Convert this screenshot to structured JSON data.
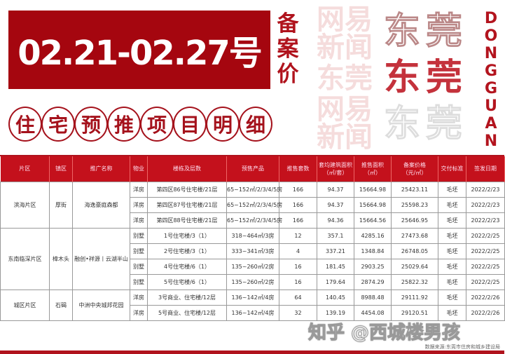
{
  "header": {
    "date_range": "02.21-02.27号",
    "side_label": [
      "备",
      "案",
      "价"
    ],
    "subtitle_chars": [
      "住",
      "宅",
      "预",
      "推",
      "项",
      "目",
      "明",
      "细"
    ],
    "deco_chars": [
      "东莞",
      "东莞",
      "东莞"
    ],
    "deco_en": [
      "D",
      "O",
      "N",
      "G",
      "G",
      "U",
      "A",
      "N"
    ]
  },
  "table": {
    "columns": [
      "片区",
      "镇区",
      "推广名称",
      "物业",
      "楼栋及层数",
      "预售产品",
      "推售套数",
      "套均建筑面积\n（㎡/套）",
      "推售面积\n（㎡）",
      "备案价格\n（元/㎡）",
      "交付标准",
      "签发日期"
    ],
    "groups": [
      {
        "area": "滨海片区",
        "town": "厚街",
        "project": "海逸豪庭森都",
        "rows": [
          [
            "洋房",
            "第四区86号住宅楼/21层",
            "65~152㎡/2/3/4/5房",
            "166",
            "94.37",
            "15664.98",
            "25423.11",
            "毛坯",
            "2022/2/23"
          ],
          [
            "洋房",
            "第四区87号住宅楼/21层",
            "65~152㎡/2/3/4/5房",
            "166",
            "94.37",
            "15664.98",
            "25598.23",
            "毛坯",
            "2022/2/23"
          ],
          [
            "洋房",
            "第四区88号住宅楼/21层",
            "65~152㎡/2/3/4/5房",
            "166",
            "94.36",
            "15664.56",
            "25646.95",
            "毛坯",
            "2022/2/23"
          ]
        ]
      },
      {
        "area": "东南临深片区",
        "town": "樟木头",
        "project": "融创•祥源丨云湖半山",
        "rows": [
          [
            "别墅",
            "1号住宅楼/3（1）",
            "318~464㎡/3房",
            "12",
            "357.1",
            "4285.16",
            "27473.68",
            "毛坯",
            "2022/2/25"
          ],
          [
            "别墅",
            "2号住宅楼/3（1）",
            "333~341㎡/3房",
            "4",
            "337.21",
            "1348.84",
            "26748.05",
            "毛坯",
            "2022/2/25"
          ],
          [
            "别墅",
            "4号住宅楼/6（1）",
            "135~260㎡/2房",
            "16",
            "181.45",
            "2903.25",
            "25029.64",
            "毛坯",
            "2022/2/25"
          ],
          [
            "别墅",
            "5号住宅楼/6（1）",
            "135~260㎡/2房",
            "16",
            "179.64",
            "2874.29",
            "25822.32",
            "毛坯",
            "2022/2/25"
          ]
        ]
      },
      {
        "area": "城区片区",
        "town": "石碣",
        "project": "中洲中央城邦花园",
        "rows": [
          [
            "洋房",
            "3号商业、住宅楼/12层",
            "136~142㎡/4房",
            "64",
            "140.45",
            "8988.48",
            "29111.92",
            "毛坯",
            "2022/2/26"
          ],
          [
            "洋房",
            "5号商业、住宅楼/12层",
            "136~142㎡/4房",
            "32",
            "139.19",
            "4454.08",
            "29120.51",
            "毛坯",
            "2022/2/26"
          ]
        ]
      }
    ]
  },
  "source": "数据来源:东莞市住房和城乡建设局",
  "watermarks": {
    "netease": "网易新闻",
    "zhihu": "知乎 @西城楼男孩",
    "dg": "东莞"
  },
  "colors": {
    "brand_red": "#a5060f",
    "header_red": "#c4111c"
  }
}
